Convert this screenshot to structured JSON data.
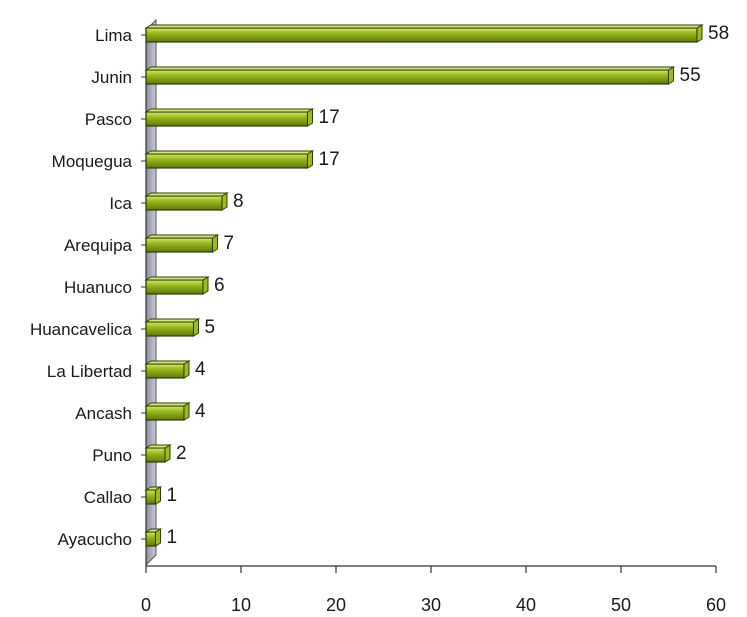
{
  "chart_data": {
    "type": "bar",
    "orientation": "horizontal",
    "categories": [
      "Lima",
      "Junin",
      "Pasco",
      "Moquegua",
      "Ica",
      "Arequipa",
      "Huanuco",
      "Huancavelica",
      "La Libertad",
      "Ancash",
      "Puno",
      "Callao",
      "Ayacucho"
    ],
    "values": [
      58,
      55,
      17,
      17,
      8,
      7,
      6,
      5,
      4,
      4,
      2,
      1,
      1
    ],
    "xlim": [
      0,
      60
    ],
    "xticks": [
      0,
      10,
      20,
      30,
      40,
      50,
      60
    ],
    "grid": false,
    "legend": "none",
    "bar_color": "#9bbb1e",
    "bar_color_dark": "#5f7a0c",
    "bar_color_light": "#d6ea7a",
    "wall_color": "#b9b9c8"
  }
}
